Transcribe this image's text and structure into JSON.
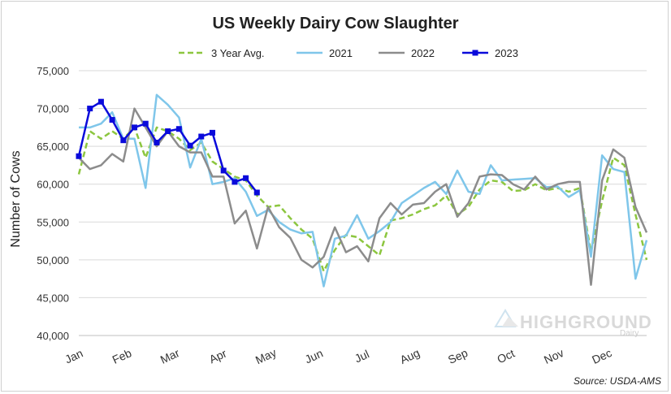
{
  "chart_data": {
    "type": "line",
    "title": "US Weekly Dairy Cow Slaughter",
    "ylabel": "Number of Cows",
    "xlabel": "",
    "ylim": [
      40000,
      75000
    ],
    "yticks": [
      "40,000",
      "45,000",
      "50,000",
      "55,000",
      "60,000",
      "65,000",
      "70,000",
      "75,000"
    ],
    "month_labels": [
      "Jan",
      "Feb",
      "Mar",
      "Apr",
      "May",
      "Jun",
      "Jul",
      "Aug",
      "Sep",
      "Oct",
      "Nov",
      "Dec"
    ],
    "x_weeks": 52,
    "legend_position": "top-center",
    "grid": "horizontal",
    "series": [
      {
        "name": "3 Year Avg.",
        "color": "#8cc63f",
        "dash": true,
        "values": [
          61300,
          67000,
          66000,
          67000,
          66000,
          67500,
          63500,
          67500,
          67000,
          66000,
          64500,
          65500,
          63000,
          62000,
          61000,
          60500,
          58500,
          57000,
          57200,
          55500,
          54000,
          52800,
          48500,
          51300,
          53300,
          53000,
          51800,
          50600,
          55200,
          55500,
          56000,
          56700,
          57200,
          58500,
          56000,
          57000,
          59300,
          60500,
          60300,
          59100,
          59200,
          60000,
          59200,
          59500,
          59000,
          59500,
          51000,
          57800,
          63500,
          62500,
          56000,
          50000
        ]
      },
      {
        "name": "2021",
        "color": "#7fc6ea",
        "dash": false,
        "values": [
          67500,
          67500,
          68000,
          69500,
          66000,
          66000,
          59500,
          71800,
          70500,
          68800,
          62200,
          66000,
          60000,
          60300,
          60800,
          59000,
          55800,
          56600,
          55000,
          54000,
          53500,
          53700,
          46500,
          52800,
          53200,
          55900,
          52800,
          53800,
          55000,
          57500,
          58500,
          59500,
          60300,
          58700,
          61800,
          59000,
          58700,
          62500,
          60500,
          60600,
          60700,
          60800,
          59600,
          59700,
          58300,
          59200,
          50400,
          63800,
          62000,
          61600,
          47500,
          52600
        ]
      },
      {
        "name": "2022",
        "color": "#8c8c8c",
        "dash": false,
        "values": [
          63500,
          62000,
          62500,
          64000,
          63000,
          70000,
          67500,
          65000,
          67000,
          65000,
          64200,
          64200,
          61000,
          61000,
          54800,
          56500,
          51500,
          57000,
          54300,
          52900,
          50000,
          49000,
          50400,
          54300,
          51000,
          51800,
          49800,
          55500,
          57500,
          56000,
          57300,
          57500,
          59000,
          60000,
          55700,
          57500,
          61000,
          61300,
          61200,
          60000,
          59300,
          61000,
          59300,
          60000,
          60300,
          60300,
          46700,
          60500,
          64600,
          63500,
          57000,
          53600
        ]
      },
      {
        "name": "2023",
        "color": "#0a0adb",
        "dash": false,
        "values": [
          63700,
          70000,
          70900,
          68500,
          65800,
          67500,
          68000,
          65500,
          67000,
          67300,
          65100,
          66300,
          66800,
          61800,
          60300,
          60800,
          58900
        ]
      }
    ],
    "source": "Source: USDA-AMS",
    "watermark": {
      "main": "HIGHGROUND",
      "sub": "Dairy"
    }
  }
}
